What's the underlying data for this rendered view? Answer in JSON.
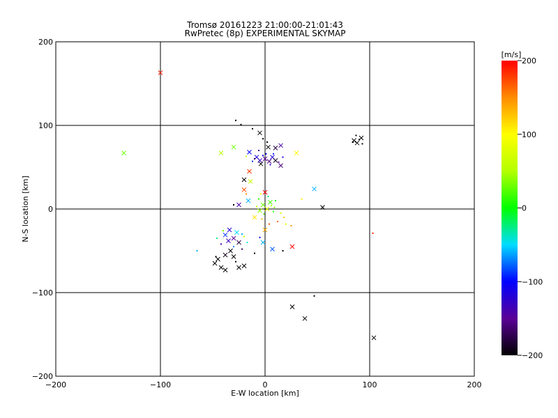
{
  "chart_data": {
    "type": "scatter",
    "title": "Tromsø 20161223 21:00:00-21:01:43",
    "subtitle": "RwPretec (8p) EXPERIMENTAL SKYMAP",
    "xlabel": "E-W location [km]",
    "ylabel": "N-S location [km]",
    "xlim": [
      -200,
      200
    ],
    "ylim": [
      -200,
      200
    ],
    "xticks": [
      -200,
      -100,
      0,
      100,
      200
    ],
    "yticks": [
      -200,
      -100,
      0,
      100,
      200
    ],
    "grid_lines": [
      -100,
      0,
      100
    ],
    "colorbar": {
      "label": "[m/s]",
      "range": [
        -200,
        200
      ],
      "ticks": [
        200,
        100,
        0,
        -100,
        -200
      ]
    },
    "markers": {
      "cross": "x",
      "dot": "."
    },
    "points": [
      [
        -100,
        163,
        190,
        "x"
      ],
      [
        -135,
        67,
        30,
        "x"
      ],
      [
        -42,
        67,
        50,
        "x"
      ],
      [
        -30,
        74,
        30,
        "x"
      ],
      [
        -15,
        68,
        -100,
        "x"
      ],
      [
        -28,
        106,
        -200,
        "."
      ],
      [
        -23,
        101,
        -200,
        "."
      ],
      [
        -12,
        96,
        -200,
        "."
      ],
      [
        -5,
        91,
        -200,
        "x"
      ],
      [
        -2,
        84,
        -200,
        "."
      ],
      [
        2,
        80,
        -200,
        "."
      ],
      [
        3,
        74,
        -200,
        "x"
      ],
      [
        10,
        73,
        -180,
        "x"
      ],
      [
        15,
        76,
        -140,
        "x"
      ],
      [
        -8,
        62,
        -120,
        "x"
      ],
      [
        -5,
        58,
        -130,
        "x"
      ],
      [
        -2,
        64,
        -110,
        "."
      ],
      [
        0,
        60,
        -150,
        "x"
      ],
      [
        4,
        57,
        -160,
        "x"
      ],
      [
        7,
        62,
        -120,
        "x"
      ],
      [
        10,
        58,
        -190,
        "x"
      ],
      [
        13,
        56,
        -150,
        "."
      ],
      [
        -10,
        60,
        -170,
        "."
      ],
      [
        1,
        66,
        -100,
        "."
      ],
      [
        -4,
        54,
        -200,
        "x"
      ],
      [
        8,
        66,
        -90,
        "."
      ],
      [
        17,
        62,
        -110,
        "."
      ],
      [
        15,
        52,
        -160,
        "x"
      ],
      [
        -6,
        70,
        -140,
        "."
      ],
      [
        5,
        53,
        -130,
        "."
      ],
      [
        -12,
        57,
        -90,
        "."
      ],
      [
        -18,
        63,
        60,
        "."
      ],
      [
        30,
        67,
        100,
        "x"
      ],
      [
        -15,
        45,
        180,
        "x"
      ],
      [
        -14,
        33,
        60,
        "x"
      ],
      [
        -20,
        35,
        -200,
        "x"
      ],
      [
        -20,
        23,
        170,
        "x"
      ],
      [
        -18,
        18,
        150,
        "."
      ],
      [
        -16,
        10,
        -60,
        "x"
      ],
      [
        -25,
        5,
        -140,
        "x"
      ],
      [
        -30,
        5,
        -200,
        "."
      ],
      [
        0,
        20,
        200,
        "x"
      ],
      [
        -2,
        5,
        30,
        "x"
      ],
      [
        2,
        0,
        80,
        "x"
      ],
      [
        -5,
        -2,
        40,
        "x"
      ],
      [
        5,
        8,
        20,
        "x"
      ],
      [
        8,
        -3,
        10,
        "."
      ],
      [
        -8,
        3,
        60,
        "."
      ],
      [
        10,
        10,
        0,
        "."
      ],
      [
        15,
        -5,
        70,
        "."
      ],
      [
        12,
        -15,
        160,
        "."
      ],
      [
        18,
        -10,
        120,
        "."
      ],
      [
        20,
        -18,
        90,
        "."
      ],
      [
        25,
        -20,
        150,
        "."
      ],
      [
        -3,
        -12,
        130,
        "."
      ],
      [
        4,
        -18,
        170,
        "."
      ],
      [
        -10,
        -10,
        110,
        "x"
      ],
      [
        0,
        -25,
        140,
        "x"
      ],
      [
        3,
        15,
        -20,
        "."
      ],
      [
        -6,
        12,
        10,
        "."
      ],
      [
        6,
        4,
        50,
        "."
      ],
      [
        -1,
        -6,
        20,
        "."
      ],
      [
        9,
        2,
        40,
        "."
      ],
      [
        -4,
        18,
        90,
        "."
      ],
      [
        47,
        24,
        -60,
        "x"
      ],
      [
        35,
        12,
        110,
        "."
      ],
      [
        55,
        2,
        -200,
        "x"
      ],
      [
        26,
        -45,
        200,
        "x"
      ],
      [
        7,
        -48,
        -80,
        "x"
      ],
      [
        -2,
        -40,
        -60,
        "x"
      ],
      [
        -5,
        -34,
        -100,
        "."
      ],
      [
        -34,
        -25,
        -120,
        "x"
      ],
      [
        -38,
        -31,
        -90,
        "x"
      ],
      [
        -30,
        -35,
        -150,
        "x"
      ],
      [
        -27,
        -28,
        -50,
        "x"
      ],
      [
        -35,
        -38,
        -130,
        "x"
      ],
      [
        -22,
        -30,
        -60,
        "."
      ],
      [
        -40,
        -26,
        30,
        "."
      ],
      [
        -25,
        -40,
        -180,
        "x"
      ],
      [
        -42,
        -42,
        -140,
        "."
      ],
      [
        -30,
        -45,
        -70,
        "."
      ],
      [
        -65,
        -50,
        -60,
        "."
      ],
      [
        -46,
        -35,
        -30,
        "."
      ],
      [
        -20,
        -33,
        60,
        "."
      ],
      [
        -17,
        -40,
        -40,
        "."
      ],
      [
        -33,
        -50,
        -200,
        "x"
      ],
      [
        -38,
        -55,
        -190,
        "x"
      ],
      [
        -45,
        -60,
        -200,
        "x"
      ],
      [
        -48,
        -65,
        -200,
        "x"
      ],
      [
        -42,
        -70,
        -200,
        "x"
      ],
      [
        -38,
        -73,
        -200,
        "x"
      ],
      [
        -47,
        -57,
        -200,
        "."
      ],
      [
        -28,
        -63,
        -200,
        "."
      ],
      [
        -25,
        -70,
        -200,
        "x"
      ],
      [
        -20,
        -68,
        -200,
        "x"
      ],
      [
        -10,
        -53,
        -200,
        "."
      ],
      [
        -30,
        -57,
        -200,
        "x"
      ],
      [
        -22,
        -48,
        -170,
        "."
      ],
      [
        17,
        -50,
        -200,
        "."
      ],
      [
        103,
        -29,
        190,
        "."
      ],
      [
        85,
        82,
        -200,
        "x"
      ],
      [
        88,
        79,
        -200,
        "x"
      ],
      [
        92,
        85,
        -200,
        "x"
      ],
      [
        87,
        88,
        -200,
        "."
      ],
      [
        90,
        83,
        -200,
        "."
      ],
      [
        93,
        78,
        -200,
        "."
      ],
      [
        84,
        80,
        -200,
        "."
      ],
      [
        47,
        -104,
        -200,
        "."
      ],
      [
        26,
        -117,
        -200,
        "x"
      ],
      [
        38,
        -131,
        -200,
        "x"
      ],
      [
        104,
        -154,
        -200,
        "x"
      ]
    ]
  }
}
